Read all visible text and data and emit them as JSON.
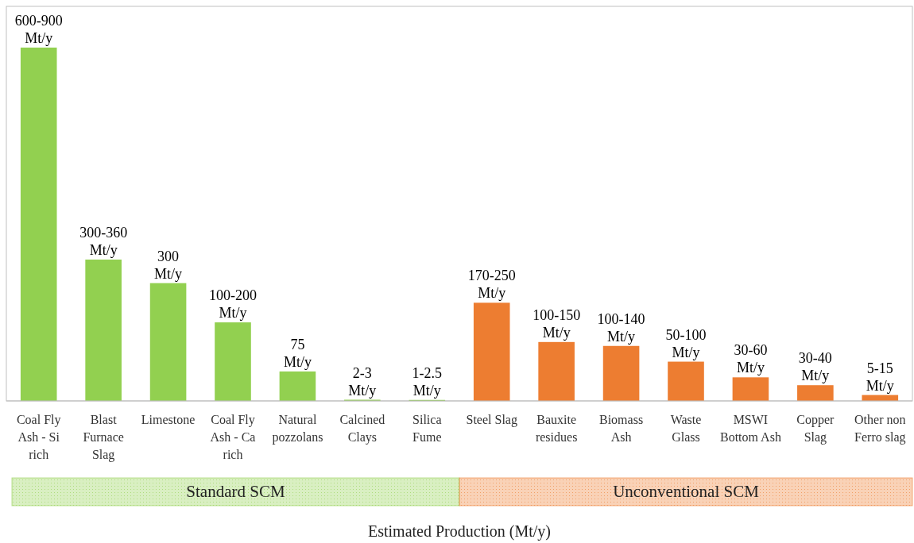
{
  "chart_data": {
    "type": "bar",
    "xlabel": "Estimated Production (Mt/y)",
    "categories": [
      "Coal Fly Ash - Si rich",
      "Blast Furnace Slag",
      "Limestone",
      "Coal Fly Ash - Ca rich",
      "Natural pozzolans",
      "Calcined Clays",
      "Silica Fume",
      "Steel Slag",
      "Bauxite residues",
      "Biomass Ash",
      "Waste Glass",
      "MSWI Bottom Ash",
      "Copper Slag",
      "Other non Ferro slag"
    ],
    "values": [
      900,
      360,
      300,
      200,
      75,
      3,
      2.5,
      250,
      150,
      140,
      100,
      60,
      40,
      15
    ],
    "value_labels": [
      "600-900 Mt/y",
      "300-360 Mt/y",
      "300 Mt/y",
      "100-200 Mt/y",
      "75 Mt/y",
      "2-3 Mt/y",
      "1-2.5 Mt/y",
      "170-250 Mt/y",
      "100-150 Mt/y",
      "100-140 Mt/y",
      "50-100 Mt/y",
      "30-60 Mt/y",
      "30-40 Mt/y",
      "5-15 Mt/y"
    ],
    "colors": [
      "#92d050",
      "#92d050",
      "#92d050",
      "#92d050",
      "#92d050",
      "#92d050",
      "#92d050",
      "#ed7d31",
      "#ed7d31",
      "#ed7d31",
      "#ed7d31",
      "#ed7d31",
      "#ed7d31",
      "#ed7d31"
    ],
    "ylim": [
      0,
      1005
    ],
    "tick_labels": "x",
    "annotations": [
      "Standard SCM",
      "Unconventional SCM"
    ]
  }
}
